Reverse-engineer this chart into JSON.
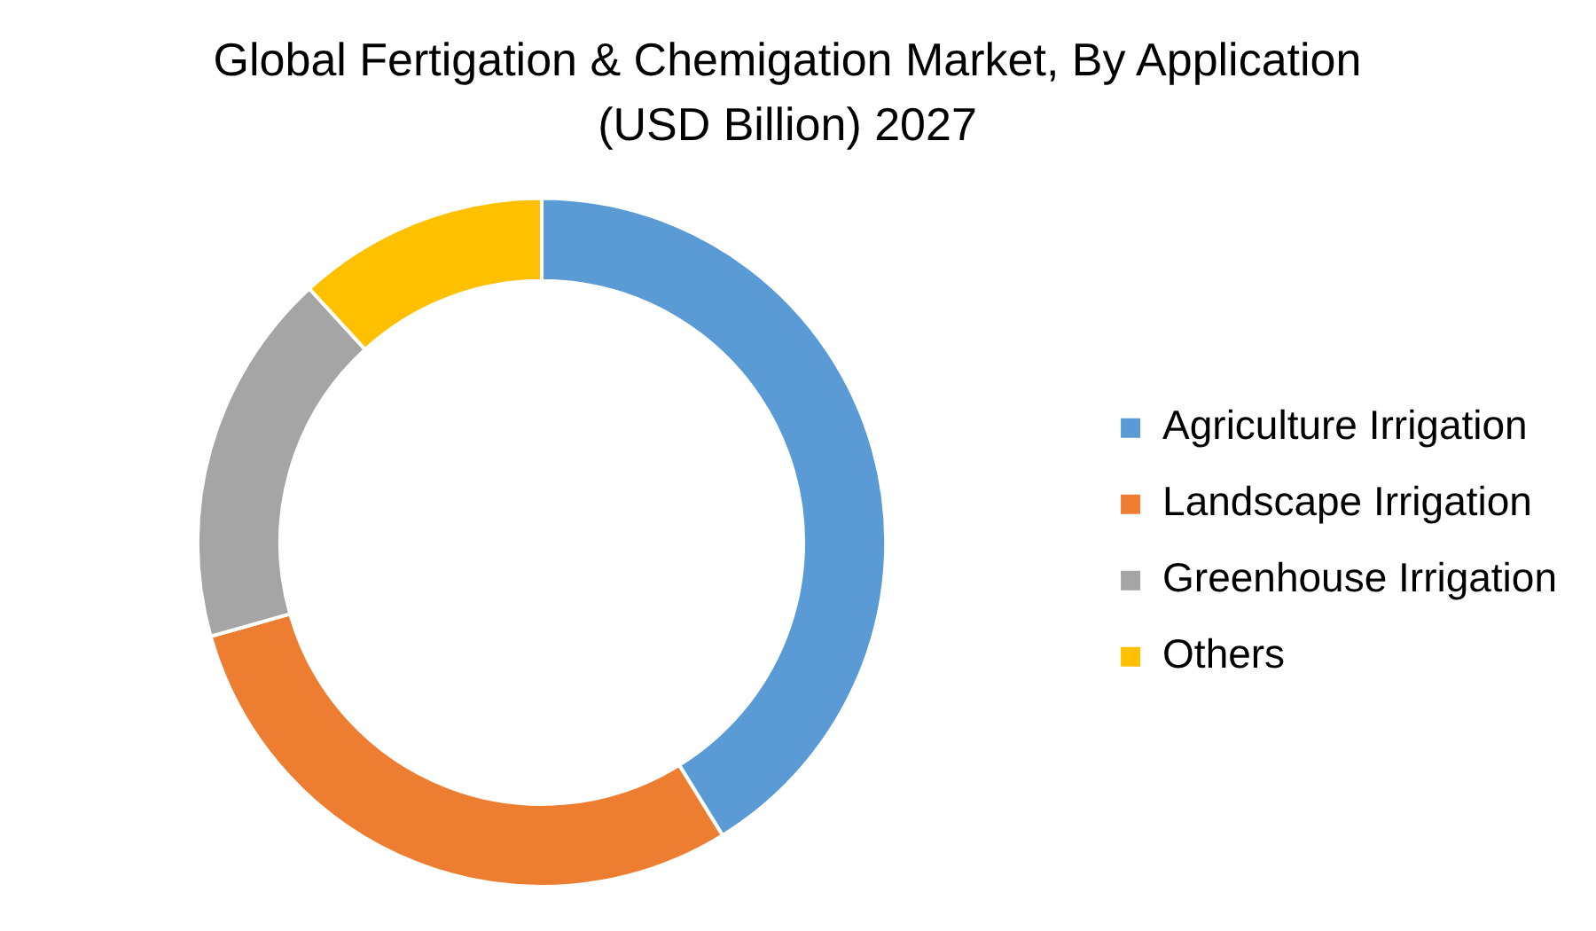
{
  "chart_data": {
    "type": "donut",
    "title": "Global Fertigation & Chemigation Market, By Application (USD Billion) 2027",
    "categories": [
      "Agriculture Irrigation",
      "Landscape Irrigation",
      "Greenhouse Irrigation",
      "Others"
    ],
    "values": [
      41.2,
      29.4,
      17.6,
      11.8
    ],
    "colors": [
      "#5b9bd5",
      "#ed7d31",
      "#a5a5a5",
      "#ffc000"
    ],
    "legend": "right"
  }
}
